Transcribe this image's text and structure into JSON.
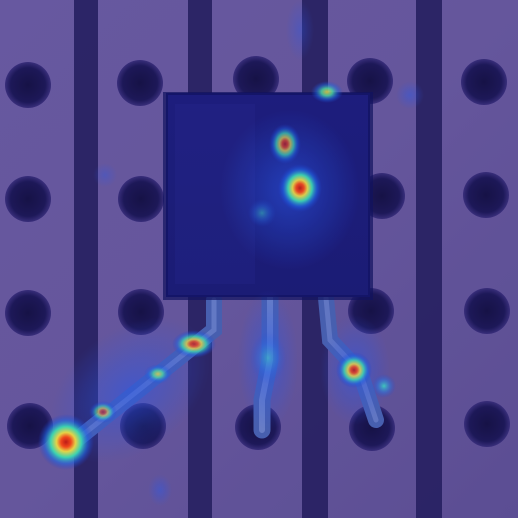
{
  "image": {
    "subject": "anomaly-heatmap-over-transistor-on-stripboard",
    "palette": {
      "board": "#6b5b9c",
      "board_light": "#7a6aae",
      "strip": "#27205a",
      "hole": "#1b1650",
      "component": "#1d1f7a",
      "component_edge": "#141464",
      "leg": "#5a70b8",
      "heat_low": "#1a3fd0",
      "heat_mid": "#2fd0c0",
      "heat_hi": "#f0e030",
      "heat_peak": "#e02010"
    },
    "heat_intensity": {
      "component_top_right": 0.85,
      "component_upper": 0.7,
      "component_center": 0.95,
      "component_lower": 0.55,
      "left_leg_mid": 0.8,
      "left_leg_tail": 1.0,
      "middle_leg": 0.6,
      "right_leg": 0.85
    }
  }
}
